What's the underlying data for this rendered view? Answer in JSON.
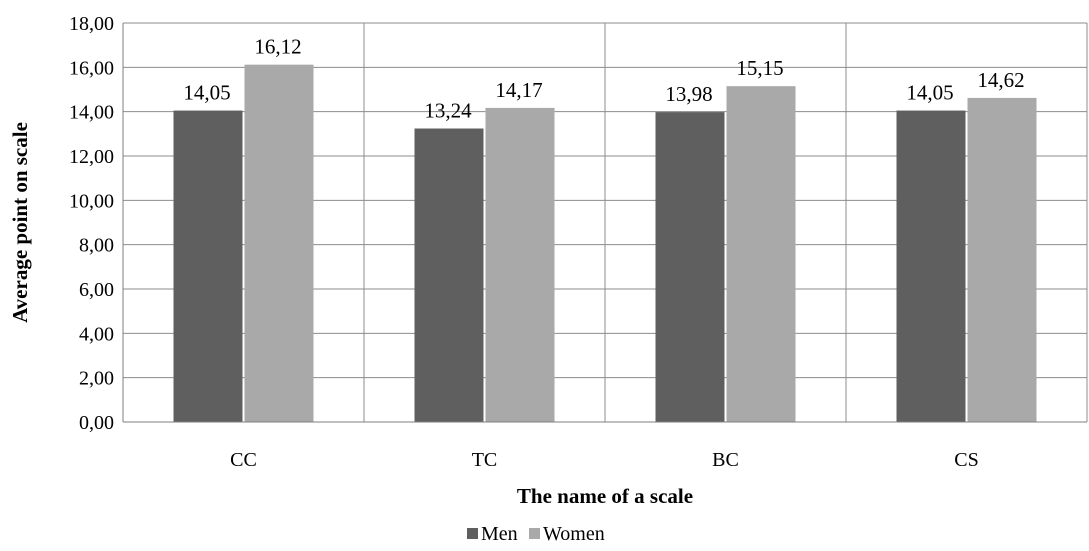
{
  "chart_data": {
    "type": "bar",
    "categories": [
      "CC",
      "TC",
      "BC",
      "CS"
    ],
    "series": [
      {
        "name": "Men",
        "values": [
          14.05,
          13.24,
          13.98,
          14.05
        ],
        "labels": [
          "14,05",
          "13,24",
          "13,98",
          "14,05"
        ],
        "color": "#5f5f5f"
      },
      {
        "name": "Women",
        "values": [
          16.12,
          14.17,
          15.15,
          14.62
        ],
        "labels": [
          "16,12",
          "14,17",
          "15,15",
          "14,62"
        ],
        "color": "#a9a9a9"
      }
    ],
    "xlabel": "The name of a scale",
    "ylabel": "Average point on scale",
    "ylim": [
      0,
      18
    ],
    "yticks": [
      0,
      2,
      4,
      6,
      8,
      10,
      12,
      14,
      16,
      18
    ],
    "ytick_labels": [
      "0,00",
      "2,00",
      "4,00",
      "6,00",
      "8,00",
      "10,00",
      "12,00",
      "14,00",
      "16,00",
      "18,00"
    ],
    "grid": true,
    "legend_position": "bottom"
  }
}
